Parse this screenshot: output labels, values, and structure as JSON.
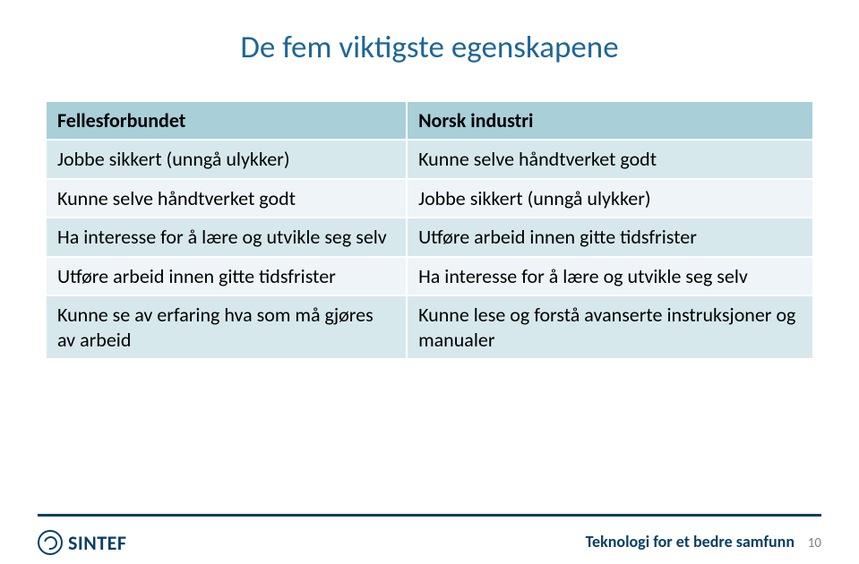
{
  "title": "De fem viktigste egenskapene",
  "table": {
    "headers": [
      "Fellesforbundet",
      "Norsk industri"
    ],
    "rows": [
      [
        "Jobbe sikkert (unngå ulykker)",
        "Kunne selve håndtverket godt"
      ],
      [
        "Kunne selve håndtverket godt",
        "Jobbe sikkert (unngå ulykker)"
      ],
      [
        "Ha interesse for å lære og utvikle seg selv",
        "Utføre arbeid innen gitte tidsfrister"
      ],
      [
        "Utføre arbeid innen gitte tidsfrister",
        "Ha interesse for å lære og utvikle seg selv"
      ],
      [
        "Kunne se av erfaring hva som må gjøres av arbeid",
        "Kunne lese og forstå avanserte instruksjoner og manualer"
      ]
    ]
  },
  "footer": {
    "logo_text": "SINTEF",
    "tagline": "Teknologi for et bedre samfunn",
    "page_number": "10"
  },
  "colors": {
    "title": "#1f6699",
    "header_bg": "#a9cfd9",
    "row_odd_bg": "#d7e8ec",
    "row_even_bg": "#eef4f7",
    "accent": "#0b3f66",
    "pagenum": "#808080"
  }
}
